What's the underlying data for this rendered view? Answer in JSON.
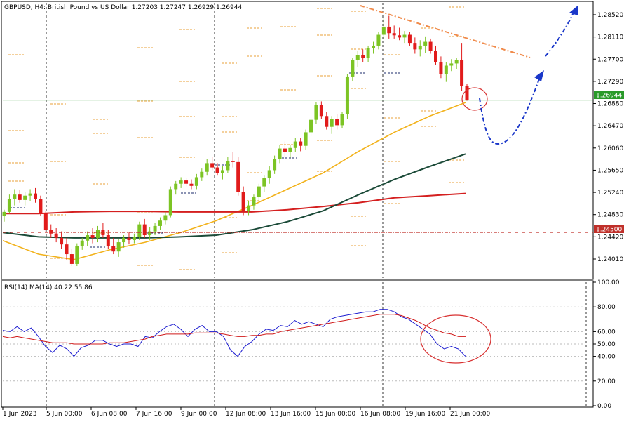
{
  "chart_data": [
    {
      "type": "candlestick",
      "title": "GBPUSD, H4:  British Pound vs US Dollar  1.27203 1.27247 1.26929 1.26944",
      "y_ticks": [
        "1.28520",
        "1.28110",
        "1.27700",
        "1.27290",
        "1.26880",
        "1.26470",
        "1.26060",
        "1.25650",
        "1.25240",
        "1.24830",
        "1.24420",
        "1.24010"
      ],
      "ylim": [
        1.2366,
        1.2874
      ],
      "x_ticks": [
        "1 Jun 2023",
        "5 Jun 00:00",
        "6 Jun 08:00",
        "7 Jun 16:00",
        "9 Jun 00:00",
        "12 Jun 08:00",
        "13 Jun 16:00",
        "15 Jun 00:00",
        "16 Jun 08:00",
        "19 Jun 16:00",
        "21 Jun 00:00"
      ],
      "current_price_label": "1.26944",
      "current_price": 1.26944,
      "support_line_label": "1.24500",
      "support_line": 1.245,
      "colors": {
        "bull": "#7cc424",
        "bear": "#e11b1b",
        "ma_fast": "#f2b21b",
        "ma_mid": "#d41f1f",
        "ma_slow": "#1b4a38",
        "current": "#2a9a2a",
        "support": "#c0302a",
        "trend": "#f08a4a",
        "forecast": "#1a37c9",
        "circle": "#d83030"
      },
      "candles": [
        [
          1.248,
          1.2492,
          1.247,
          1.2488
        ],
        [
          1.2488,
          1.252,
          1.2485,
          1.2512
        ],
        [
          1.2512,
          1.253,
          1.25,
          1.252
        ],
        [
          1.252,
          1.2528,
          1.2505,
          1.251
        ],
        [
          1.251,
          1.2525,
          1.25,
          1.2518
        ],
        [
          1.2518,
          1.253,
          1.2508,
          1.2522
        ],
        [
          1.2522,
          1.2532,
          1.2505,
          1.2512
        ],
        [
          1.2512,
          1.2518,
          1.248,
          1.2485
        ],
        [
          1.2485,
          1.249,
          1.245,
          1.2455
        ],
        [
          1.2455,
          1.2465,
          1.244,
          1.2448
        ],
        [
          1.2448,
          1.2458,
          1.2432,
          1.244
        ],
        [
          1.244,
          1.2452,
          1.242,
          1.2428
        ],
        [
          1.2428,
          1.244,
          1.24,
          1.241
        ],
        [
          1.241,
          1.242,
          1.2388,
          1.2392
        ],
        [
          1.2392,
          1.243,
          1.2388,
          1.2425
        ],
        [
          1.2425,
          1.244,
          1.2418,
          1.2435
        ],
        [
          1.2435,
          1.2452,
          1.2425,
          1.2445
        ],
        [
          1.2445,
          1.2458,
          1.243,
          1.244
        ],
        [
          1.244,
          1.2462,
          1.2432,
          1.2455
        ],
        [
          1.2455,
          1.2468,
          1.244,
          1.2445
        ],
        [
          1.2445,
          1.2455,
          1.242,
          1.2425
        ],
        [
          1.2425,
          1.244,
          1.241,
          1.2415
        ],
        [
          1.2415,
          1.2438,
          1.2405,
          1.2432
        ],
        [
          1.2432,
          1.2445,
          1.2422,
          1.244
        ],
        [
          1.244,
          1.245,
          1.2428,
          1.2436
        ],
        [
          1.2436,
          1.2448,
          1.243,
          1.2442
        ],
        [
          1.2442,
          1.247,
          1.2436,
          1.2465
        ],
        [
          1.2465,
          1.2475,
          1.244,
          1.2445
        ],
        [
          1.2445,
          1.246,
          1.2436,
          1.2452
        ],
        [
          1.2452,
          1.2468,
          1.2445,
          1.2462
        ],
        [
          1.2462,
          1.2478,
          1.2455,
          1.2472
        ],
        [
          1.2472,
          1.2488,
          1.2465,
          1.2482
        ],
        [
          1.2482,
          1.2535,
          1.2478,
          1.253
        ],
        [
          1.253,
          1.2545,
          1.252,
          1.254
        ],
        [
          1.254,
          1.2552,
          1.2532,
          1.2546
        ],
        [
          1.2546,
          1.255,
          1.2535,
          1.254
        ],
        [
          1.254,
          1.2548,
          1.253,
          1.2536
        ],
        [
          1.2536,
          1.2558,
          1.253,
          1.2552
        ],
        [
          1.2552,
          1.2568,
          1.2545,
          1.2562
        ],
        [
          1.2562,
          1.2585,
          1.2555,
          1.2578
        ],
        [
          1.2578,
          1.259,
          1.2565,
          1.257
        ],
        [
          1.257,
          1.2578,
          1.2555,
          1.256
        ],
        [
          1.256,
          1.2572,
          1.2548,
          1.2565
        ],
        [
          1.2565,
          1.259,
          1.256,
          1.2582
        ],
        [
          1.2582,
          1.2598,
          1.257,
          1.258
        ],
        [
          1.258,
          1.259,
          1.2518,
          1.2525
        ],
        [
          1.2525,
          1.2535,
          1.2482,
          1.249
        ],
        [
          1.249,
          1.2508,
          1.2482,
          1.25
        ],
        [
          1.25,
          1.252,
          1.2492,
          1.2515
        ],
        [
          1.2515,
          1.254,
          1.2508,
          1.2535
        ],
        [
          1.2535,
          1.2555,
          1.2525,
          1.255
        ],
        [
          1.255,
          1.2572,
          1.254,
          1.2565
        ],
        [
          1.2565,
          1.2592,
          1.2558,
          1.2585
        ],
        [
          1.2585,
          1.2612,
          1.2578,
          1.2605
        ],
        [
          1.2605,
          1.2618,
          1.259,
          1.2598
        ],
        [
          1.2598,
          1.2612,
          1.2588,
          1.2606
        ],
        [
          1.2606,
          1.2625,
          1.2598,
          1.2618
        ],
        [
          1.2618,
          1.2625,
          1.26,
          1.261
        ],
        [
          1.261,
          1.264,
          1.2602,
          1.2635
        ],
        [
          1.2635,
          1.2662,
          1.2628,
          1.2658
        ],
        [
          1.2658,
          1.269,
          1.265,
          1.2685
        ],
        [
          1.2685,
          1.2692,
          1.266,
          1.2665
        ],
        [
          1.2665,
          1.2672,
          1.264,
          1.2645
        ],
        [
          1.2645,
          1.2665,
          1.2632,
          1.266
        ],
        [
          1.266,
          1.2668,
          1.264,
          1.2648
        ],
        [
          1.2648,
          1.2672,
          1.2642,
          1.2668
        ],
        [
          1.2668,
          1.2742,
          1.266,
          1.2738
        ],
        [
          1.2738,
          1.2772,
          1.273,
          1.2768
        ],
        [
          1.2768,
          1.2785,
          1.2755,
          1.2778
        ],
        [
          1.2778,
          1.2788,
          1.2765,
          1.2772
        ],
        [
          1.2772,
          1.2795,
          1.2765,
          1.279
        ],
        [
          1.279,
          1.2802,
          1.278,
          1.2795
        ],
        [
          1.2795,
          1.282,
          1.2788,
          1.2815
        ],
        [
          1.2815,
          1.2845,
          1.2808,
          1.283
        ],
        [
          1.283,
          1.285,
          1.2808,
          1.2818
        ],
        [
          1.2818,
          1.2832,
          1.2808,
          1.2814
        ],
        [
          1.2814,
          1.2828,
          1.2805,
          1.281
        ],
        [
          1.281,
          1.2822,
          1.28,
          1.2815
        ],
        [
          1.2815,
          1.282,
          1.2795,
          1.28
        ],
        [
          1.28,
          1.281,
          1.278,
          1.2788
        ],
        [
          1.2788,
          1.2805,
          1.2775,
          1.2795
        ],
        [
          1.2795,
          1.2812,
          1.2782,
          1.2802
        ],
        [
          1.2802,
          1.2808,
          1.278,
          1.2785
        ],
        [
          1.2785,
          1.2795,
          1.276,
          1.2765
        ],
        [
          1.2765,
          1.2775,
          1.2735,
          1.2742
        ],
        [
          1.2742,
          1.2765,
          1.2728,
          1.2758
        ],
        [
          1.2758,
          1.277,
          1.2748,
          1.2762
        ],
        [
          1.2762,
          1.2772,
          1.2752,
          1.2768
        ],
        [
          1.2768,
          1.28,
          1.2712,
          1.272
        ],
        [
          1.272,
          1.2725,
          1.2693,
          1.2694
        ]
      ],
      "series": [
        {
          "values": [
            1.2435,
            1.241,
            1.24,
            1.2418,
            1.2432,
            1.245,
            1.2472,
            1.25,
            1.253,
            1.256,
            1.26,
            1.2635,
            1.2665,
            1.269
          ]
        },
        {
          "values": [
            1.2485,
            1.2485,
            1.2488,
            1.2489,
            1.2489,
            1.2488,
            1.2488,
            1.2488,
            1.2492,
            1.2498,
            1.2505,
            1.2514,
            1.2518,
            1.2522
          ]
        },
        {
          "values": [
            1.245,
            1.2442,
            1.244,
            1.244,
            1.244,
            1.2442,
            1.2445,
            1.2455,
            1.247,
            1.249,
            1.252,
            1.2548,
            1.2572,
            1.2595
          ]
        }
      ],
      "h_level_ticks_note": "",
      "annotations": []
    },
    {
      "type": "line",
      "title": "RSI(14) MA(14) 40.22 55.86",
      "y_ticks": [
        "100.00",
        "80.00",
        "60.00",
        "50.00",
        "40.00",
        "20.00",
        "0.00"
      ],
      "ylim": [
        0,
        100
      ],
      "series": [
        {
          "values": [
            61,
            60,
            64,
            60,
            63,
            56,
            48,
            43,
            49,
            46,
            40,
            47,
            49,
            53,
            53,
            50,
            48,
            50,
            50,
            48,
            56,
            55,
            60,
            64,
            66,
            62,
            56,
            62,
            65,
            60,
            60,
            56,
            45,
            40,
            48,
            52,
            58,
            62,
            61,
            65,
            64,
            69,
            66,
            68,
            66,
            64,
            70,
            72,
            73,
            74,
            75,
            76,
            76,
            78,
            78,
            76,
            72,
            70,
            66,
            62,
            58,
            50,
            46,
            48,
            46,
            40
          ]
        },
        {
          "values": [
            56,
            55,
            56,
            55,
            54,
            53,
            52,
            51,
            51,
            51,
            50,
            50,
            50,
            50,
            50,
            51,
            51,
            51,
            52,
            53,
            54,
            56,
            57,
            58,
            58,
            58,
            58,
            59,
            59,
            59,
            59,
            58,
            57,
            56,
            56,
            57,
            57,
            58,
            58,
            60,
            61,
            62,
            63,
            64,
            65,
            66,
            67,
            68,
            69,
            70,
            71,
            72,
            73,
            74,
            74,
            74,
            73,
            71,
            69,
            66,
            63,
            61,
            59,
            58,
            56,
            56
          ]
        }
      ]
    }
  ]
}
